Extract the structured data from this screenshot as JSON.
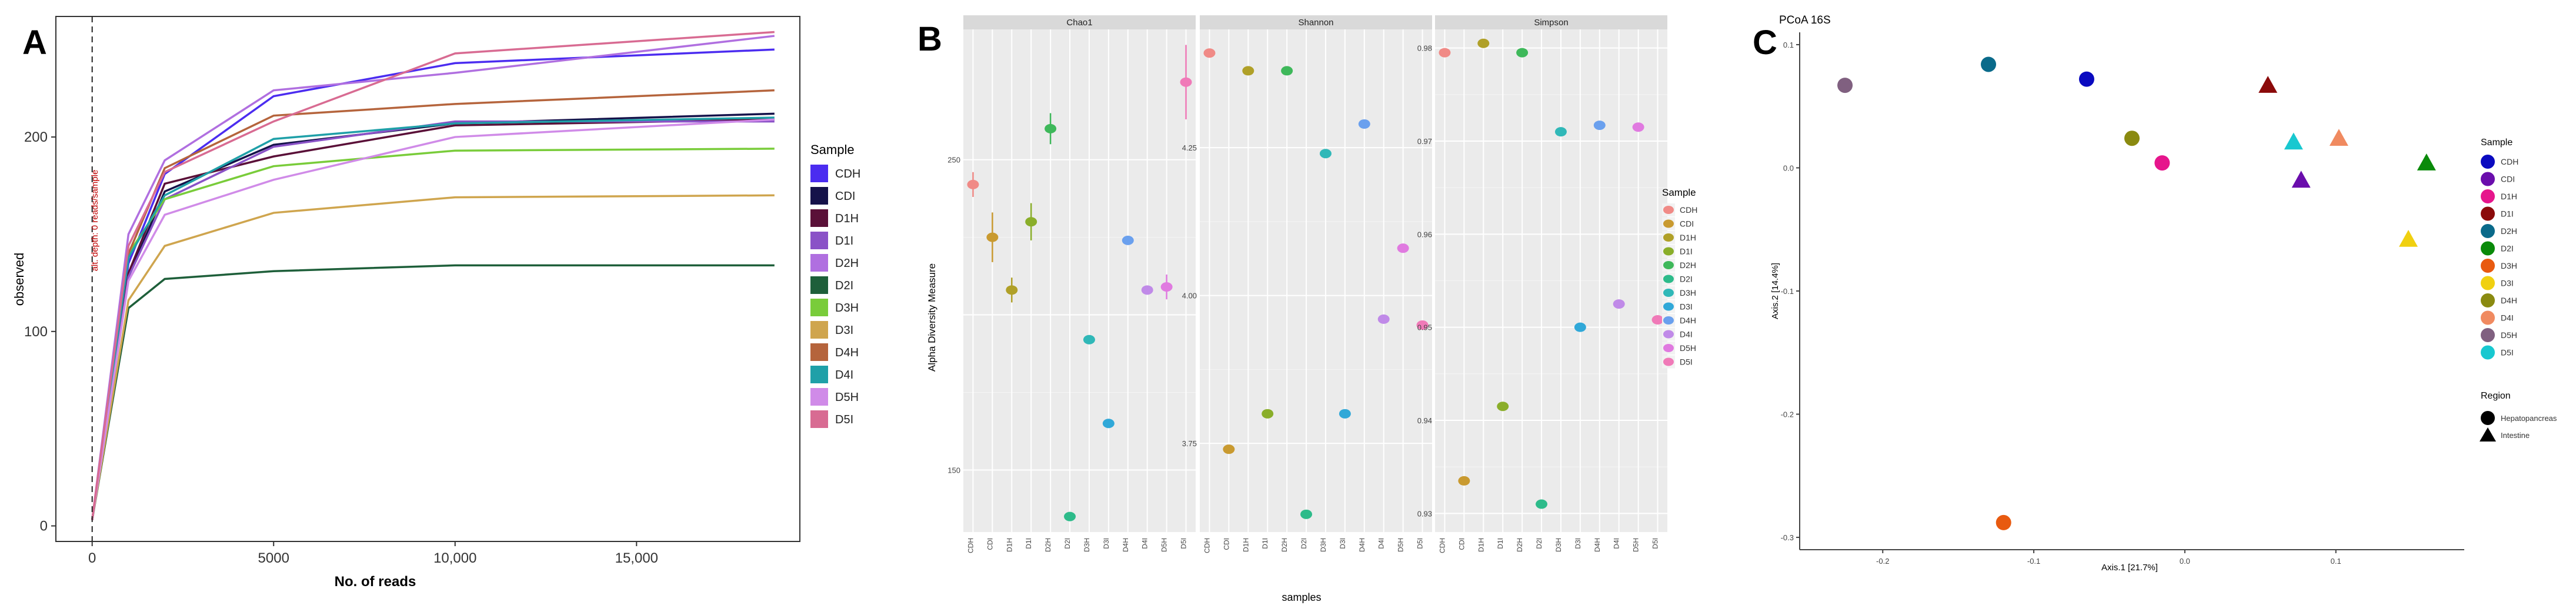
{
  "panelA": {
    "letter": "A",
    "chart_data": {
      "type": "line",
      "title": "",
      "xlabel": "No. of reads",
      "ylabel": "observed",
      "xlim": [
        -1000,
        19500
      ],
      "ylim": [
        -8,
        262
      ],
      "xticks": [
        0,
        5000,
        10000,
        15000
      ],
      "xtick_labels": [
        "0",
        "5000",
        "10,000",
        "15,000"
      ],
      "yticks": [
        0,
        100,
        200
      ],
      "ytick_labels": [
        "0",
        "100",
        "200"
      ],
      "rarefaction_annotation": "alt. depth: 0 reads/sample",
      "legend_title": "Sample",
      "x": [
        0,
        1000,
        2000,
        5000,
        10000,
        18800
      ],
      "series": [
        {
          "name": "CDH",
          "color": "#4b2cf0",
          "values": [
            3,
            135,
            181,
            221,
            238,
            245
          ]
        },
        {
          "name": "CDI",
          "color": "#15124a",
          "values": [
            3,
            128,
            172,
            196,
            207,
            212
          ]
        },
        {
          "name": "D1H",
          "color": "#5a1038",
          "values": [
            3,
            130,
            176,
            190,
            206,
            209
          ]
        },
        {
          "name": "D1I",
          "color": "#8a52c7",
          "values": [
            3,
            128,
            168,
            195,
            208,
            208
          ]
        },
        {
          "name": "D2H",
          "color": "#b06fe0",
          "values": [
            3,
            150,
            188,
            224,
            233,
            252
          ]
        },
        {
          "name": "D2I",
          "color": "#1e5f3a",
          "values": [
            3,
            112,
            127,
            131,
            134,
            134
          ]
        },
        {
          "name": "D3H",
          "color": "#79cc3a",
          "values": [
            3,
            140,
            168,
            185,
            193,
            194
          ]
        },
        {
          "name": "D3I",
          "color": "#cfa54e",
          "values": [
            3,
            116,
            144,
            161,
            169,
            170
          ]
        },
        {
          "name": "D4H",
          "color": "#b5643c",
          "values": [
            3,
            140,
            184,
            211,
            217,
            224
          ]
        },
        {
          "name": "D4I",
          "color": "#1fa0a8",
          "values": [
            3,
            138,
            170,
            199,
            207,
            210
          ]
        },
        {
          "name": "D5H",
          "color": "#d08be8",
          "values": [
            3,
            126,
            160,
            178,
            200,
            209
          ]
        },
        {
          "name": "D5I",
          "color": "#d86b92",
          "values": [
            3,
            144,
            182,
            208,
            243,
            254
          ]
        }
      ]
    }
  },
  "panelB": {
    "letter": "B",
    "chart_data": {
      "type": "scatter",
      "ylabel": "Alpha Diversity Measure",
      "xlabel": "samples",
      "legend_title": "Sample",
      "categories": [
        "CDH",
        "CDI",
        "D1H",
        "D1I",
        "D2H",
        "D2I",
        "D3H",
        "D3I",
        "D4H",
        "D4I",
        "D5H",
        "D5I"
      ],
      "colors": [
        "#f08a86",
        "#c99a30",
        "#b0a028",
        "#8aae2a",
        "#3eb85a",
        "#2dbb8a",
        "#30b8b8",
        "#30a8d8",
        "#6aa0ee",
        "#c08ae8",
        "#e07ae0",
        "#f07ab8"
      ],
      "facets": [
        {
          "title": "Chao1",
          "ylim": [
            130,
            292
          ],
          "yticks": [
            150,
            200,
            250
          ],
          "ytick_labels": [
            "150",
            "",
            "250"
          ],
          "values": [
            242,
            225,
            208,
            230,
            260,
            135,
            192,
            165,
            224,
            208,
            209,
            275
          ],
          "errors": [
            4,
            8,
            4,
            6,
            5,
            0,
            0,
            0,
            0,
            0,
            4,
            12
          ]
        },
        {
          "title": "Shannon",
          "ylim": [
            3.6,
            4.45
          ],
          "yticks": [
            3.75,
            4.0,
            4.25
          ],
          "ytick_labels": [
            "3.75",
            "4.00",
            "4.25"
          ],
          "values": [
            4.41,
            3.74,
            4.38,
            3.8,
            4.38,
            3.63,
            4.24,
            3.8,
            4.29,
            3.96,
            4.08,
            3.95
          ],
          "errors": [
            0,
            0,
            0,
            0,
            0,
            0,
            0,
            0,
            0,
            0,
            0,
            0
          ]
        },
        {
          "title": "Simpson",
          "ylim": [
            0.928,
            0.982
          ],
          "yticks": [
            0.93,
            0.94,
            0.95,
            0.96,
            0.97,
            0.98
          ],
          "ytick_labels": [
            "0.93",
            "0.94",
            "0.95",
            "0.96",
            "0.97",
            "0.98"
          ],
          "values": [
            0.9795,
            0.9335,
            0.9805,
            0.9415,
            0.9795,
            0.931,
            0.971,
            0.95,
            0.9717,
            0.9525,
            0.9715,
            0.9508
          ],
          "errors": [
            0,
            0,
            0,
            0,
            0,
            0,
            0,
            0,
            0,
            0,
            0,
            0
          ]
        }
      ]
    }
  },
  "panelC": {
    "letter": "C",
    "chart_data": {
      "type": "scatter",
      "title": "PCoA 16S",
      "xlabel": "Axis.1   [21.7%]",
      "ylabel": "Axis.2   [14.4%]",
      "xlim": [
        -0.255,
        0.185
      ],
      "ylim": [
        -0.31,
        0.11
      ],
      "xticks": [
        -0.2,
        -0.1,
        0.0,
        0.1
      ],
      "xtick_labels": [
        "-0.2",
        "-0.1",
        "0.0",
        "0.1"
      ],
      "yticks": [
        -0.3,
        -0.2,
        -0.1,
        0.0,
        0.1
      ],
      "ytick_labels": [
        "-0.3",
        "-0.2",
        "-0.1",
        "0.0",
        "0.1"
      ],
      "legend_title": "Sample",
      "legend": [
        {
          "name": "CDH",
          "color": "#0a0ac0"
        },
        {
          "name": "CDI",
          "color": "#6a0dac"
        },
        {
          "name": "D1H",
          "color": "#e6158c"
        },
        {
          "name": "D1I",
          "color": "#8b0a0a"
        },
        {
          "name": "D2H",
          "color": "#0a6a8a"
        },
        {
          "name": "D2I",
          "color": "#0a8a0a"
        },
        {
          "name": "D3H",
          "color": "#e85a10"
        },
        {
          "name": "D3I",
          "color": "#f0d010"
        },
        {
          "name": "D4H",
          "color": "#8a8a10"
        },
        {
          "name": "D4I",
          "color": "#f08a60"
        },
        {
          "name": "D5H",
          "color": "#806080"
        },
        {
          "name": "D5I",
          "color": "#18c8d0"
        }
      ],
      "region_title": "Region",
      "regions": [
        {
          "name": "Hepatopancreas",
          "shape": "circle"
        },
        {
          "name": "Intestine",
          "shape": "triangle"
        }
      ],
      "points": [
        {
          "sample": "D5H",
          "x": -0.225,
          "y": 0.067,
          "shape": "circle"
        },
        {
          "sample": "D2H",
          "x": -0.13,
          "y": 0.084,
          "shape": "circle"
        },
        {
          "sample": "CDH",
          "x": -0.065,
          "y": 0.072,
          "shape": "circle"
        },
        {
          "sample": "D4H",
          "x": -0.035,
          "y": 0.024,
          "shape": "circle"
        },
        {
          "sample": "D1H",
          "x": -0.015,
          "y": 0.004,
          "shape": "circle"
        },
        {
          "sample": "D3H",
          "x": -0.12,
          "y": -0.288,
          "shape": "circle"
        },
        {
          "sample": "D1I",
          "x": 0.055,
          "y": 0.067,
          "shape": "triangle"
        },
        {
          "sample": "D5I",
          "x": 0.072,
          "y": 0.021,
          "shape": "triangle"
        },
        {
          "sample": "D4I",
          "x": 0.102,
          "y": 0.024,
          "shape": "triangle"
        },
        {
          "sample": "CDI",
          "x": 0.077,
          "y": -0.01,
          "shape": "triangle"
        },
        {
          "sample": "D2I",
          "x": 0.16,
          "y": 0.004,
          "shape": "triangle"
        },
        {
          "sample": "D3I",
          "x": 0.148,
          "y": -0.058,
          "shape": "triangle"
        }
      ]
    }
  }
}
